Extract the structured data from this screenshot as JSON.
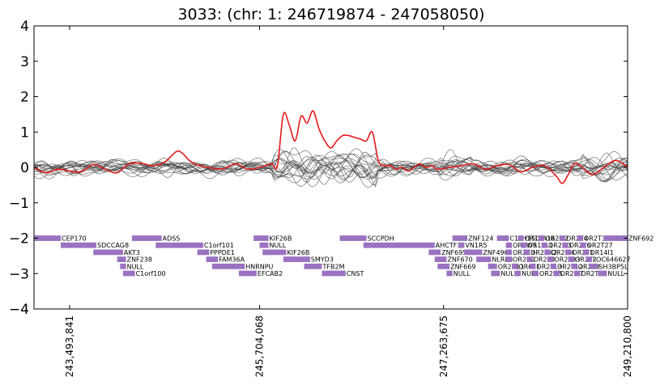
{
  "chart_data": {
    "type": "line",
    "title": "3033: (chr: 1: 246719874 - 247058050)",
    "ylim": [
      -4,
      4
    ],
    "yticks": [
      "4",
      "3",
      "2",
      "1",
      "0",
      "−1",
      "−2",
      "−3",
      "−4"
    ],
    "xlim": [
      0,
      100
    ],
    "xticks": [
      {
        "x": 6,
        "label": "243,493,841"
      },
      {
        "x": 38,
        "label": "245,704,068"
      },
      {
        "x": 69,
        "label": "247,263,675"
      },
      {
        "x": 100,
        "label": "249,210,800"
      }
    ],
    "highlight_color": "#e31a1c",
    "background_color": "#444444",
    "gene_color": "#9b72c1",
    "highlight_series": {
      "x": [
        0,
        2,
        4,
        6,
        8,
        10,
        12,
        14,
        16,
        18,
        20,
        22,
        24,
        25,
        26,
        27,
        28,
        30,
        32,
        34,
        36,
        38,
        40,
        41,
        42,
        43,
        44,
        45,
        46,
        47,
        48,
        49,
        50,
        51,
        52,
        53,
        54,
        55,
        56,
        57,
        58,
        59,
        60,
        61,
        62,
        63,
        64,
        65,
        66,
        67,
        68,
        70,
        72,
        74,
        76,
        78,
        80,
        82,
        84,
        86,
        88,
        89,
        90,
        91,
        92,
        94,
        96,
        98,
        100
      ],
      "y": [
        0.0,
        -0.15,
        -0.05,
        -0.1,
        -0.12,
        0.08,
        -0.05,
        -0.15,
        0.1,
        0.12,
        0.05,
        0.15,
        0.45,
        0.4,
        0.22,
        0.1,
        0.05,
        -0.02,
        -0.03,
        0.1,
        -0.05,
        0.0,
        0.1,
        0.05,
        1.5,
        1.2,
        0.75,
        1.45,
        1.25,
        1.6,
        1.1,
        0.75,
        0.55,
        0.75,
        0.9,
        0.9,
        0.85,
        0.8,
        0.75,
        1.0,
        0.2,
        0.05,
        0.05,
        -0.05,
        0.0,
        -0.1,
        0.0,
        0.1,
        0.0,
        0.05,
        -0.05,
        0.0,
        0.05,
        0.1,
        -0.05,
        0.05,
        0.08,
        -0.12,
        0.0,
        0.05,
        -0.25,
        -0.45,
        -0.2,
        0.1,
        0.05,
        -0.2,
        0.0,
        0.2,
        0.0
      ]
    },
    "background_series_count": 18,
    "genes": [
      {
        "start": 0.0,
        "end": 4.5,
        "row": 0,
        "label": "CEP170"
      },
      {
        "start": 4.5,
        "end": 10.5,
        "row": 1,
        "label": "SDCCAG8"
      },
      {
        "start": 10.0,
        "end": 15.0,
        "row": 2,
        "label": "AKT3"
      },
      {
        "start": 14.0,
        "end": 15.5,
        "row": 3,
        "label": "ZNF238"
      },
      {
        "start": 14.5,
        "end": 15.5,
        "row": 4,
        "label": "NULL"
      },
      {
        "start": 15.0,
        "end": 17.0,
        "row": 5,
        "label": "C1orf100"
      },
      {
        "start": 16.5,
        "end": 21.5,
        "row": 0,
        "label": "ADSS"
      },
      {
        "start": 20.5,
        "end": 28.5,
        "row": 1,
        "label": "C1orf101"
      },
      {
        "start": 27.5,
        "end": 29.5,
        "row": 2,
        "label": "PPPDE1"
      },
      {
        "start": 29.0,
        "end": 31.0,
        "row": 3,
        "label": "FAM36A"
      },
      {
        "start": 30.0,
        "end": 35.5,
        "row": 4,
        "label": "HNRNPU"
      },
      {
        "start": 34.5,
        "end": 37.5,
        "row": 5,
        "label": "EFCAB2"
      },
      {
        "start": 37.0,
        "end": 39.5,
        "row": 0,
        "label": "KIF26B"
      },
      {
        "start": 38.0,
        "end": 39.5,
        "row": 1,
        "label": "NULL"
      },
      {
        "start": 38.5,
        "end": 42.5,
        "row": 2,
        "label": "KIF26B"
      },
      {
        "start": 42.0,
        "end": 46.5,
        "row": 3,
        "label": "SMYD3"
      },
      {
        "start": 45.5,
        "end": 48.5,
        "row": 4,
        "label": "TFB2M"
      },
      {
        "start": 48.5,
        "end": 52.5,
        "row": 5,
        "label": "CNST"
      },
      {
        "start": 51.5,
        "end": 56.0,
        "row": 0,
        "label": "SCCPDH"
      },
      {
        "start": 55.5,
        "end": 67.5,
        "row": 1,
        "label": "AHCTF1"
      },
      {
        "start": 66.5,
        "end": 68.5,
        "row": 2,
        "label": "ZNF695"
      },
      {
        "start": 67.5,
        "end": 69.5,
        "row": 3,
        "label": "ZNF670"
      },
      {
        "start": 68.0,
        "end": 70.0,
        "row": 4,
        "label": "ZNF669"
      },
      {
        "start": 69.5,
        "end": 70.5,
        "row": 5,
        "label": "NULL"
      },
      {
        "start": 70.5,
        "end": 73.0,
        "row": 0,
        "label": "ZNF124"
      },
      {
        "start": 71.5,
        "end": 72.5,
        "row": 1,
        "label": "VN1R5"
      },
      {
        "start": 72.5,
        "end": 75.5,
        "row": 2,
        "label": "ZNF496"
      },
      {
        "start": 74.5,
        "end": 77.0,
        "row": 3,
        "label": "NLRP3"
      },
      {
        "start": 76.5,
        "end": 78.0,
        "row": 4,
        "label": "OR2B11"
      },
      {
        "start": 77.0,
        "end": 78.5,
        "row": 5,
        "label": "NULL"
      },
      {
        "start": 78.0,
        "end": 80.0,
        "row": 0,
        "label": "C1orf150"
      },
      {
        "start": 79.5,
        "end": 80.5,
        "row": 1,
        "label": "OR2W5"
      },
      {
        "start": 79.5,
        "end": 80.5,
        "row": 2,
        "label": "OR2C3"
      },
      {
        "start": 79.5,
        "end": 80.5,
        "row": 3,
        "label": "OR2G2"
      },
      {
        "start": 80.5,
        "end": 81.5,
        "row": 4,
        "label": "OR6F1"
      },
      {
        "start": 81.0,
        "end": 82.0,
        "row": 5,
        "label": "NULL"
      },
      {
        "start": 81.5,
        "end": 82.5,
        "row": 0,
        "label": "OR14A16"
      },
      {
        "start": 82.0,
        "end": 83.0,
        "row": 1,
        "label": "OR11L1"
      },
      {
        "start": 82.5,
        "end": 83.5,
        "row": 2,
        "label": "OR2AK2"
      },
      {
        "start": 83.0,
        "end": 84.0,
        "row": 3,
        "label": "OR2L8"
      },
      {
        "start": 83.5,
        "end": 84.5,
        "row": 4,
        "label": "OR2L13"
      },
      {
        "start": 84.0,
        "end": 85.0,
        "row": 5,
        "label": "OR2M5"
      },
      {
        "start": 85.0,
        "end": 86.0,
        "row": 0,
        "label": "OR2M2"
      },
      {
        "start": 85.5,
        "end": 86.5,
        "row": 1,
        "label": "OR2M3"
      },
      {
        "start": 86.0,
        "end": 87.0,
        "row": 2,
        "label": "OR2M4"
      },
      {
        "start": 86.5,
        "end": 87.5,
        "row": 3,
        "label": "OR2T33"
      },
      {
        "start": 87.0,
        "end": 88.0,
        "row": 4,
        "label": "OR2T12"
      },
      {
        "start": 87.5,
        "end": 88.5,
        "row": 5,
        "label": "OR2M7"
      },
      {
        "start": 88.5,
        "end": 89.5,
        "row": 0,
        "label": "OR2T4"
      },
      {
        "start": 89.0,
        "end": 90.0,
        "row": 1,
        "label": "OR2T6"
      },
      {
        "start": 89.5,
        "end": 90.5,
        "row": 2,
        "label": "OR2T1"
      },
      {
        "start": 90.0,
        "end": 91.0,
        "row": 3,
        "label": "OR2T2"
      },
      {
        "start": 90.5,
        "end": 91.5,
        "row": 4,
        "label": "OR2T3"
      },
      {
        "start": 91.0,
        "end": 92.0,
        "row": 5,
        "label": "OR2T5"
      },
      {
        "start": 91.5,
        "end": 92.5,
        "row": 0,
        "label": "OR2T35"
      },
      {
        "start": 92.0,
        "end": 93.0,
        "row": 1,
        "label": "OR2T27"
      },
      {
        "start": 92.5,
        "end": 93.5,
        "row": 2,
        "label": "OR14I1"
      },
      {
        "start": 93.0,
        "end": 94.0,
        "row": 3,
        "label": "LOC646627"
      },
      {
        "start": 93.5,
        "end": 95.0,
        "row": 4,
        "label": "SH3BP5L"
      },
      {
        "start": 95.0,
        "end": 96.5,
        "row": 5,
        "label": "NULL"
      },
      {
        "start": 96.0,
        "end": 100.0,
        "row": 0,
        "label": "ZNF692"
      }
    ]
  }
}
